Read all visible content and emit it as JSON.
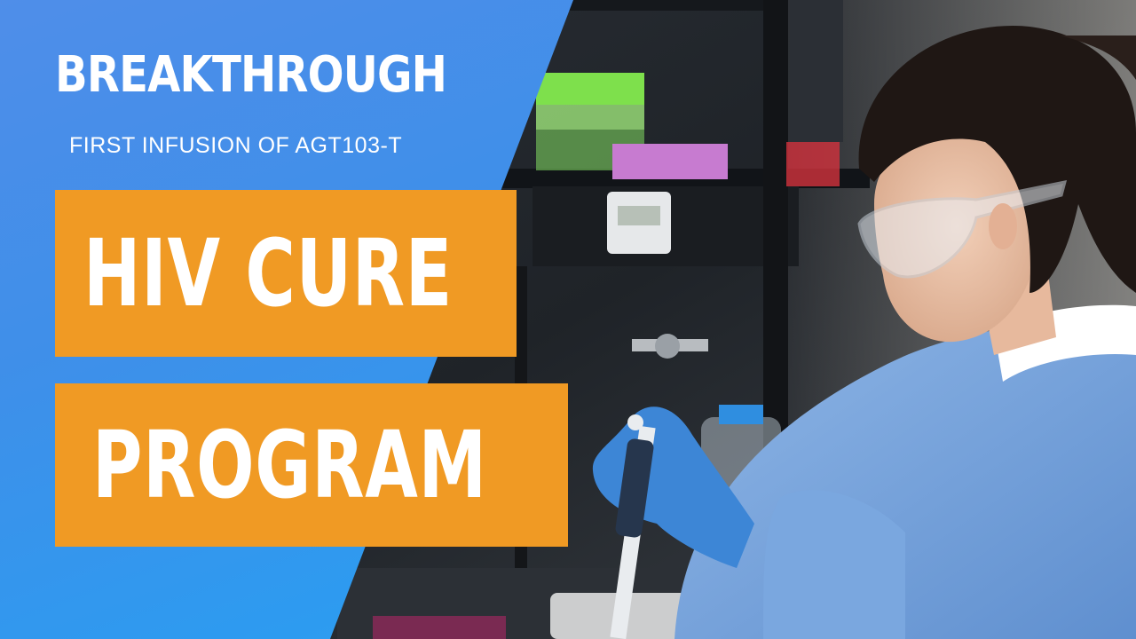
{
  "thumbnail": {
    "heading": "BREAKTHROUGH",
    "subheading": "FIRST INFUSION OF AGT103-T",
    "line1": "HIV CURE",
    "line2": "PROGRAM"
  },
  "colors": {
    "panel_blue": "#3f8fe9",
    "box_orange": "#f09a24",
    "text_white": "#ffffff"
  },
  "photo_subject": "scientist-with-pipette-in-lab"
}
